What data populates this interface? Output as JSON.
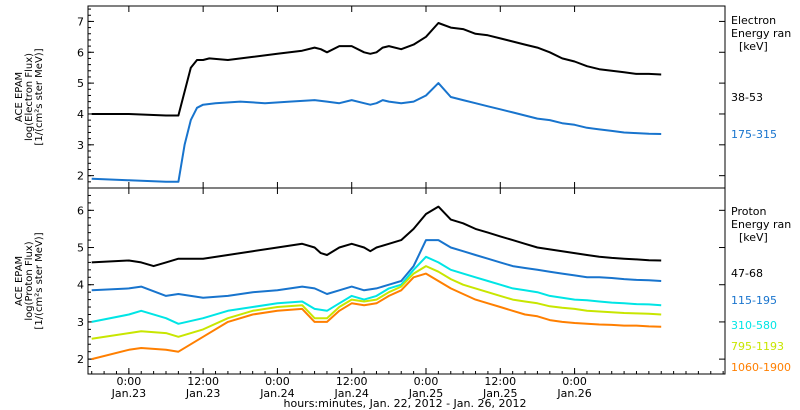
{
  "chart_data": [
    {
      "type": "line",
      "ylabel": [
        "ACE EPAM",
        "log(Electron Flux)",
        "[1/(cm²s ster MeV)]"
      ],
      "ylim": [
        1.6,
        7.5
      ],
      "yticks": [
        2,
        3,
        4,
        5,
        6,
        7
      ],
      "legend_title": [
        "Electron",
        "Energy ran",
        "[keV]"
      ],
      "series": [
        {
          "name": "38-53",
          "color": "#000000",
          "x": [
            -6,
            0,
            6,
            8,
            10,
            11,
            12,
            13,
            16,
            20,
            24,
            28,
            30,
            31,
            32,
            34,
            36,
            38,
            39,
            40,
            41,
            42,
            44,
            46,
            48,
            50,
            52,
            54,
            56,
            58,
            60,
            62,
            64,
            66,
            68,
            70,
            72,
            74,
            76,
            78,
            80,
            82,
            84,
            86
          ],
          "y": [
            4.0,
            4.0,
            3.95,
            3.95,
            5.5,
            5.75,
            5.75,
            5.8,
            5.75,
            5.85,
            5.95,
            6.05,
            6.15,
            6.1,
            6.0,
            6.2,
            6.2,
            6.0,
            5.95,
            6.0,
            6.15,
            6.2,
            6.1,
            6.25,
            6.5,
            6.95,
            6.8,
            6.75,
            6.6,
            6.55,
            6.45,
            6.35,
            6.25,
            6.15,
            6.0,
            5.8,
            5.7,
            5.55,
            5.45,
            5.4,
            5.35,
            5.3,
            5.3,
            5.28
          ]
        },
        {
          "name": "175-315",
          "color": "#1874cd",
          "x": [
            -6,
            0,
            6,
            8,
            9,
            10,
            11,
            12,
            14,
            18,
            22,
            26,
            30,
            32,
            34,
            36,
            38,
            39,
            40,
            41,
            42,
            44,
            46,
            48,
            50,
            52,
            54,
            56,
            58,
            60,
            62,
            64,
            66,
            68,
            70,
            72,
            74,
            76,
            78,
            80,
            82,
            84,
            86
          ],
          "y": [
            1.9,
            1.85,
            1.8,
            1.8,
            3.0,
            3.8,
            4.2,
            4.3,
            4.35,
            4.4,
            4.35,
            4.4,
            4.45,
            4.4,
            4.35,
            4.45,
            4.35,
            4.3,
            4.35,
            4.45,
            4.4,
            4.35,
            4.4,
            4.6,
            5.0,
            4.55,
            4.45,
            4.35,
            4.25,
            4.15,
            4.05,
            3.95,
            3.85,
            3.8,
            3.7,
            3.65,
            3.55,
            3.5,
            3.45,
            3.4,
            3.38,
            3.36,
            3.35
          ]
        }
      ]
    },
    {
      "type": "line",
      "ylabel": [
        "ACE EPAM",
        "log(Proton Flux)",
        "[1/(cm²s ster MeV)]"
      ],
      "ylim": [
        1.6,
        6.6
      ],
      "yticks": [
        2,
        3,
        4,
        5,
        6
      ],
      "legend_title": [
        "Proton",
        "Energy ran",
        "[keV]"
      ],
      "xlabel": "hours:minutes, Jan. 22, 2012 - Jan. 26, 2012",
      "xlim": [
        -6.6,
        96.3
      ],
      "xticks": [
        {
          "x": 0,
          "label": "0:00",
          "date": "Jan.23"
        },
        {
          "x": 12,
          "label": "12:00",
          "date": "Jan.23"
        },
        {
          "x": 24,
          "label": "0:00",
          "date": "Jan.24"
        },
        {
          "x": 36,
          "label": "12:00",
          "date": "Jan.24"
        },
        {
          "x": 48,
          "label": "0:00",
          "date": "Jan.25"
        },
        {
          "x": 60,
          "label": "12:00",
          "date": "Jan.25"
        },
        {
          "x": 72,
          "label": "0:00",
          "date": "Jan.26"
        }
      ],
      "series": [
        {
          "name": "47-68",
          "color": "#000000",
          "x": [
            -6,
            0,
            2,
            4,
            6,
            8,
            12,
            16,
            20,
            24,
            28,
            30,
            31,
            32,
            34,
            36,
            38,
            39,
            40,
            42,
            44,
            46,
            48,
            50,
            52,
            54,
            56,
            58,
            60,
            62,
            64,
            66,
            68,
            70,
            72,
            74,
            76,
            78,
            80,
            82,
            84,
            86
          ],
          "y": [
            4.6,
            4.65,
            4.6,
            4.5,
            4.6,
            4.7,
            4.7,
            4.8,
            4.9,
            5.0,
            5.1,
            5.0,
            4.85,
            4.8,
            5.0,
            5.1,
            5.0,
            4.9,
            5.0,
            5.1,
            5.2,
            5.5,
            5.9,
            6.1,
            5.75,
            5.65,
            5.5,
            5.4,
            5.3,
            5.2,
            5.1,
            5.0,
            4.95,
            4.9,
            4.85,
            4.8,
            4.75,
            4.72,
            4.7,
            4.68,
            4.66,
            4.65
          ]
        },
        {
          "name": "115-195",
          "color": "#1874cd",
          "x": [
            -6,
            0,
            2,
            6,
            8,
            12,
            16,
            20,
            24,
            28,
            30,
            32,
            34,
            36,
            38,
            40,
            42,
            44,
            46,
            48,
            50,
            52,
            54,
            56,
            58,
            60,
            62,
            64,
            66,
            68,
            70,
            72,
            74,
            76,
            78,
            80,
            82,
            84,
            86
          ],
          "y": [
            3.85,
            3.9,
            3.95,
            3.7,
            3.75,
            3.65,
            3.7,
            3.8,
            3.85,
            3.95,
            3.9,
            3.75,
            3.85,
            3.95,
            3.85,
            3.9,
            4.0,
            4.1,
            4.5,
            5.2,
            5.2,
            5.0,
            4.9,
            4.8,
            4.7,
            4.6,
            4.5,
            4.45,
            4.4,
            4.35,
            4.3,
            4.25,
            4.2,
            4.2,
            4.18,
            4.15,
            4.13,
            4.12,
            4.1
          ]
        },
        {
          "name": "310-580",
          "color": "#00e5e5",
          "x": [
            -6,
            0,
            2,
            6,
            8,
            12,
            16,
            20,
            24,
            28,
            30,
            32,
            34,
            36,
            38,
            40,
            42,
            44,
            46,
            48,
            50,
            52,
            54,
            56,
            58,
            60,
            62,
            64,
            66,
            68,
            70,
            72,
            74,
            76,
            78,
            80,
            82,
            84,
            86
          ],
          "y": [
            3.0,
            3.2,
            3.3,
            3.1,
            2.95,
            3.1,
            3.3,
            3.4,
            3.5,
            3.55,
            3.35,
            3.3,
            3.5,
            3.7,
            3.6,
            3.7,
            3.9,
            4.0,
            4.4,
            4.75,
            4.6,
            4.4,
            4.3,
            4.2,
            4.1,
            4.0,
            3.9,
            3.85,
            3.8,
            3.7,
            3.65,
            3.6,
            3.58,
            3.55,
            3.52,
            3.5,
            3.48,
            3.47,
            3.45
          ]
        },
        {
          "name": "795-1193",
          "color": "#c8e600",
          "x": [
            -6,
            0,
            2,
            6,
            8,
            12,
            16,
            20,
            24,
            28,
            30,
            32,
            34,
            36,
            38,
            40,
            42,
            44,
            46,
            48,
            50,
            52,
            54,
            56,
            58,
            60,
            62,
            64,
            66,
            68,
            70,
            72,
            74,
            76,
            78,
            80,
            82,
            84,
            86
          ],
          "y": [
            2.55,
            2.7,
            2.75,
            2.7,
            2.6,
            2.8,
            3.1,
            3.3,
            3.4,
            3.45,
            3.1,
            3.1,
            3.4,
            3.6,
            3.55,
            3.6,
            3.8,
            3.95,
            4.3,
            4.5,
            4.35,
            4.15,
            4.0,
            3.9,
            3.8,
            3.7,
            3.6,
            3.55,
            3.5,
            3.42,
            3.38,
            3.35,
            3.3,
            3.28,
            3.26,
            3.24,
            3.23,
            3.22,
            3.2
          ]
        },
        {
          "name": "1060-1900",
          "color": "#ff7f00",
          "x": [
            -6,
            0,
            2,
            6,
            8,
            12,
            16,
            20,
            24,
            28,
            30,
            32,
            34,
            36,
            38,
            40,
            42,
            44,
            46,
            48,
            50,
            52,
            54,
            56,
            58,
            60,
            62,
            64,
            66,
            68,
            70,
            72,
            74,
            76,
            78,
            80,
            82,
            84,
            86
          ],
          "y": [
            2.0,
            2.25,
            2.3,
            2.25,
            2.2,
            2.6,
            3.0,
            3.2,
            3.3,
            3.35,
            3.0,
            3.0,
            3.3,
            3.5,
            3.45,
            3.5,
            3.7,
            3.85,
            4.2,
            4.3,
            4.1,
            3.9,
            3.75,
            3.6,
            3.5,
            3.4,
            3.3,
            3.2,
            3.15,
            3.05,
            3.0,
            2.97,
            2.95,
            2.93,
            2.92,
            2.9,
            2.9,
            2.88,
            2.87
          ]
        }
      ]
    }
  ]
}
